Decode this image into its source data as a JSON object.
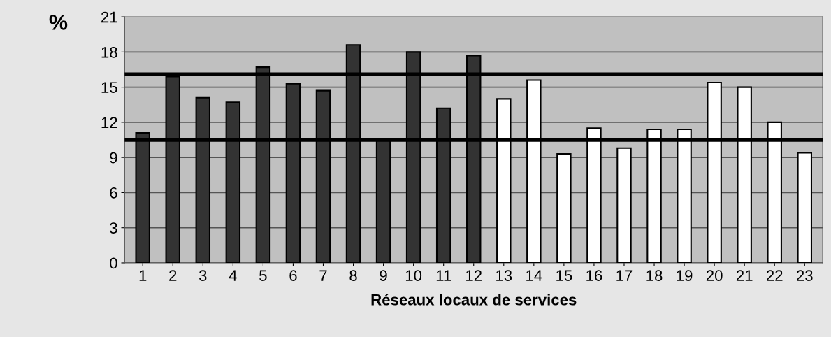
{
  "chart_data": {
    "type": "bar",
    "xlabel": "Réseaux locaux de services",
    "ylabel": "%",
    "categories": [
      "1",
      "2",
      "3",
      "4",
      "5",
      "6",
      "7",
      "8",
      "9",
      "10",
      "11",
      "12",
      "13",
      "14",
      "15",
      "16",
      "17",
      "18",
      "19",
      "20",
      "21",
      "22",
      "23"
    ],
    "values": [
      11.1,
      15.9,
      14.1,
      13.7,
      16.7,
      15.3,
      14.7,
      18.6,
      10.5,
      18.0,
      13.2,
      17.7,
      14.0,
      15.6,
      9.3,
      11.5,
      9.8,
      11.4,
      11.4,
      15.4,
      15.0,
      12.0,
      9.4
    ],
    "colors": [
      "#333333",
      "#333333",
      "#333333",
      "#333333",
      "#333333",
      "#333333",
      "#333333",
      "#333333",
      "#333333",
      "#333333",
      "#333333",
      "#333333",
      "#ffffff",
      "#ffffff",
      "#ffffff",
      "#ffffff",
      "#ffffff",
      "#ffffff",
      "#ffffff",
      "#ffffff",
      "#ffffff",
      "#ffffff",
      "#ffffff"
    ],
    "ylim": [
      0,
      21
    ],
    "yticks": [
      0,
      3,
      6,
      9,
      12,
      15,
      18,
      21
    ],
    "grid": "y",
    "legend": false,
    "ref_lines": [
      {
        "axis": "y",
        "value": 16.1,
        "color": "#000000"
      },
      {
        "axis": "y",
        "value": 10.5,
        "color": "#000000"
      }
    ]
  }
}
